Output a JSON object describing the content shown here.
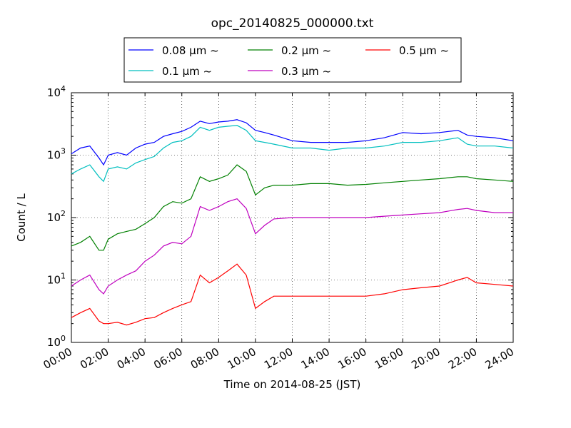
{
  "chart_data": {
    "type": "line",
    "title": "opc_20140825_000000.txt",
    "xlabel": "Time on 2014-08-25 (JST)",
    "ylabel": "Count / L",
    "x_unit": "hours",
    "xlim": [
      0,
      24
    ],
    "ylim": [
      1,
      10000
    ],
    "y_scale": "log",
    "grid": true,
    "legend_position": "top",
    "x_tick_labels": [
      "00:00",
      "02:00",
      "04:00",
      "06:00",
      "08:00",
      "10:00",
      "12:00",
      "14:00",
      "16:00",
      "18:00",
      "20:00",
      "22:00",
      "24:00"
    ],
    "x_ticks": [
      0,
      2,
      4,
      6,
      8,
      10,
      12,
      14,
      16,
      18,
      20,
      22,
      24
    ],
    "y_ticks": [
      1,
      10,
      100,
      1000,
      10000
    ],
    "y_tick_labels": [
      {
        "base": "10",
        "exp": "0"
      },
      {
        "base": "10",
        "exp": "1"
      },
      {
        "base": "10",
        "exp": "2"
      },
      {
        "base": "10",
        "exp": "3"
      },
      {
        "base": "10",
        "exp": "4"
      }
    ],
    "x": [
      0,
      0.5,
      1,
      1.5,
      1.75,
      2,
      2.5,
      3,
      3.5,
      4,
      4.5,
      5,
      5.5,
      6,
      6.5,
      7,
      7.5,
      8,
      8.5,
      9,
      9.5,
      10,
      10.5,
      11,
      12,
      13,
      14,
      15,
      16,
      17,
      18,
      19,
      20,
      21,
      21.5,
      22,
      23,
      24
    ],
    "series": [
      {
        "name": "0.08 μm ~",
        "color": "#0000ff",
        "values": [
          1050,
          1300,
          1400,
          900,
          700,
          1000,
          1100,
          1000,
          1300,
          1500,
          1600,
          2000,
          2200,
          2400,
          2800,
          3500,
          3200,
          3400,
          3500,
          3700,
          3300,
          2500,
          2300,
          2100,
          1700,
          1600,
          1600,
          1600,
          1700,
          1900,
          2300,
          2200,
          2300,
          2500,
          2100,
          2000,
          1900,
          1700
        ]
      },
      {
        "name": "0.1 μm ~",
        "color": "#00bfbf",
        "values": [
          500,
          600,
          700,
          450,
          380,
          600,
          650,
          600,
          750,
          850,
          950,
          1300,
          1600,
          1700,
          2000,
          2800,
          2500,
          2800,
          2900,
          3000,
          2500,
          1700,
          1600,
          1500,
          1300,
          1300,
          1200,
          1300,
          1300,
          1400,
          1600,
          1600,
          1700,
          1900,
          1500,
          1400,
          1400,
          1300
        ]
      },
      {
        "name": "0.2 μm ~",
        "color": "#008000",
        "values": [
          35,
          40,
          50,
          30,
          30,
          45,
          55,
          60,
          65,
          80,
          100,
          150,
          180,
          170,
          200,
          450,
          380,
          420,
          480,
          700,
          550,
          230,
          300,
          330,
          330,
          350,
          350,
          330,
          340,
          360,
          380,
          400,
          420,
          450,
          450,
          420,
          400,
          380
        ]
      },
      {
        "name": "0.3 μm ~",
        "color": "#bf00bf",
        "values": [
          8,
          10,
          12,
          7,
          6,
          8,
          10,
          12,
          14,
          20,
          25,
          35,
          40,
          38,
          50,
          150,
          130,
          150,
          180,
          200,
          140,
          55,
          75,
          95,
          100,
          100,
          100,
          100,
          100,
          105,
          110,
          115,
          120,
          135,
          140,
          130,
          120,
          120
        ]
      },
      {
        "name": "0.5 μm ~",
        "color": "#ff0000",
        "values": [
          2.5,
          3,
          3.5,
          2.2,
          2,
          2,
          2.1,
          1.9,
          2.1,
          2.4,
          2.5,
          3,
          3.5,
          4,
          4.5,
          12,
          9,
          11,
          14,
          18,
          12,
          3.5,
          4.5,
          5.5,
          5.5,
          5.5,
          5.5,
          5.5,
          5.5,
          6,
          7,
          7.5,
          8,
          10,
          11,
          9,
          8.5,
          8
        ]
      }
    ]
  }
}
